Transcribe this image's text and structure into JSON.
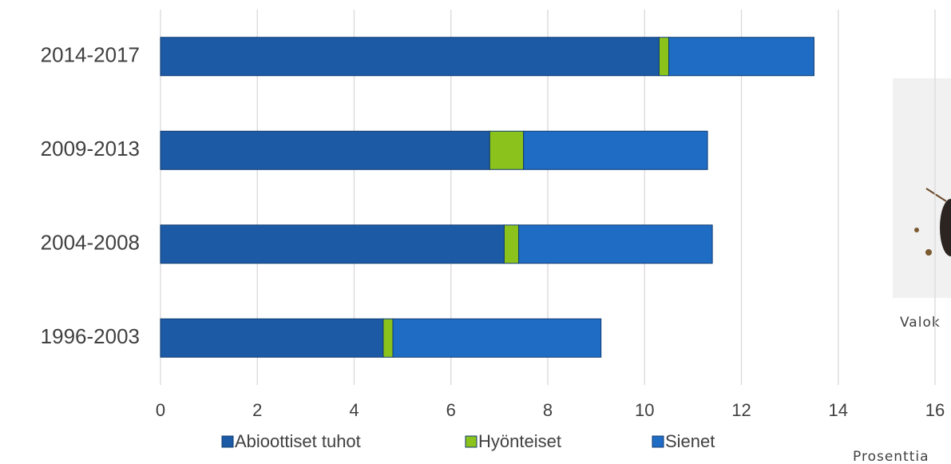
{
  "chart_data": {
    "type": "stacked-bar-horizontal",
    "categories": [
      "2014-2017",
      "2009-2013",
      "2004-2008",
      "1996-2003"
    ],
    "series": [
      {
        "name": "Abioottiset tuhot",
        "color": "#1d5aa6",
        "values": [
          10.3,
          6.8,
          7.1,
          4.6
        ]
      },
      {
        "name": "Hyönteiset",
        "color": "#8cc21c",
        "values": [
          0.2,
          0.7,
          0.3,
          0.2
        ]
      },
      {
        "name": "Sienet",
        "color": "#1f6cc4",
        "values": [
          3.0,
          3.8,
          4.0,
          4.3
        ]
      }
    ],
    "xlim": [
      0,
      16
    ],
    "xticks": [
      0,
      2,
      4,
      6,
      8,
      10,
      12,
      14,
      16
    ],
    "grid": true,
    "x_label": "Prosenttia",
    "photo_caption": "Valok"
  }
}
